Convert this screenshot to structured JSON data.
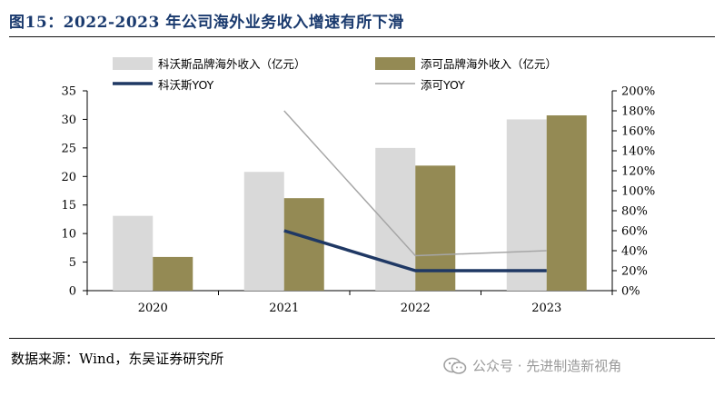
{
  "figure": {
    "title": "图15：2022-2023 年公司海外业务收入增速有所下滑",
    "source": "数据来源：Wind，东吴证券研究所",
    "watermark": "公众号 · 先进制造新视角",
    "watermark_icon": "wechat-icon"
  },
  "chart_data": {
    "type": "bar",
    "categories": [
      "2020",
      "2021",
      "2022",
      "2023"
    ],
    "series": [
      {
        "name": "科沃斯品牌海外收入（亿元）",
        "kind": "bar",
        "axis": "left",
        "color": "#d9d9d9",
        "values": [
          13.1,
          20.8,
          25.0,
          30.0
        ]
      },
      {
        "name": "添可品牌海外收入（亿元）",
        "kind": "bar",
        "axis": "left",
        "color": "#948a54",
        "values": [
          5.9,
          16.2,
          21.9,
          30.7
        ]
      },
      {
        "name": "科沃斯YOY",
        "kind": "line",
        "axis": "right",
        "color": "#1f3864",
        "values": [
          null,
          0.6,
          0.2,
          0.2
        ]
      },
      {
        "name": "添可YOY",
        "kind": "line",
        "axis": "right",
        "color": "#a6a6a6",
        "values": [
          null,
          1.8,
          0.35,
          0.4
        ]
      }
    ],
    "y_left": {
      "min": 0,
      "max": 35,
      "ticks": [
        "0",
        "5",
        "10",
        "15",
        "20",
        "25",
        "30",
        "35"
      ]
    },
    "y_right": {
      "min": 0,
      "max": 2.0,
      "ticks": [
        "0%",
        "20%",
        "40%",
        "60%",
        "80%",
        "100%",
        "120%",
        "140%",
        "160%",
        "180%",
        "200%"
      ]
    },
    "grid": false,
    "legend_position": "top"
  }
}
